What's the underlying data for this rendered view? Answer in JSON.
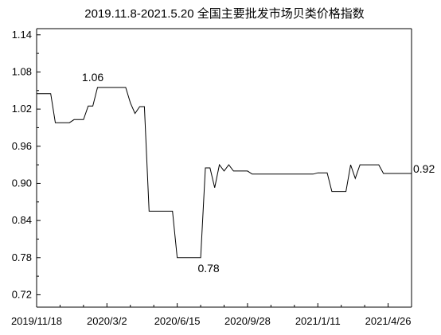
{
  "chart_data": {
    "type": "line",
    "title": "2019.11.8-2021.5.20 全国主要批发市场贝类价格指数",
    "xlabel": "",
    "ylabel": "",
    "ylim": [
      0.7,
      1.15
    ],
    "yticks": [
      "0.72",
      "0.78",
      "0.84",
      "0.90",
      "0.96",
      "1.02",
      "1.08",
      "1.14"
    ],
    "xticks": [
      "2019/11/18",
      "2020/3/2",
      "2020/6/15",
      "2020/9/28",
      "2021/1/11",
      "2021/4/26"
    ],
    "grid": false,
    "series": [
      {
        "x": [
          0,
          3,
          4,
          7,
          8,
          10,
          11,
          12,
          13,
          14,
          15,
          16,
          17,
          18,
          19,
          20,
          21,
          22,
          23,
          24,
          26,
          27,
          28,
          29,
          30,
          31,
          32,
          33,
          34,
          35,
          36,
          37,
          38,
          39,
          40,
          41,
          42,
          43,
          44,
          45,
          46,
          47,
          48,
          49,
          50,
          51,
          52,
          53,
          54,
          55,
          56,
          57,
          58,
          59,
          60,
          61,
          62,
          63,
          64,
          65,
          66,
          67,
          68,
          69,
          70,
          71,
          72,
          73,
          74,
          75,
          76,
          77,
          78,
          79,
          80
        ],
        "y": [
          1.045,
          1.045,
          0.998,
          0.998,
          1.003,
          1.003,
          1.025,
          1.025,
          1.055,
          1.055,
          1.055,
          1.055,
          1.055,
          1.055,
          1.055,
          1.03,
          1.013,
          1.024,
          1.024,
          0.855,
          0.855,
          0.855,
          0.855,
          0.855,
          0.78,
          0.78,
          0.78,
          0.78,
          0.78,
          0.78,
          0.925,
          0.925,
          0.893,
          0.93,
          0.92,
          0.93,
          0.92,
          0.92,
          0.92,
          0.92,
          0.915,
          0.915,
          0.915,
          0.915,
          0.915,
          0.915,
          0.915,
          0.915,
          0.915,
          0.915,
          0.915,
          0.915,
          0.915,
          0.915,
          0.917,
          0.917,
          0.917,
          0.887,
          0.887,
          0.887,
          0.887,
          0.93,
          0.908,
          0.93,
          0.93,
          0.93,
          0.93,
          0.93,
          0.916,
          0.916,
          0.916,
          0.916,
          0.916,
          0.916,
          0.916
        ]
      }
    ],
    "annotations": [
      {
        "text": "1.06",
        "x": 13,
        "y": 1.055
      },
      {
        "text": "0.78",
        "x": 35,
        "y": 0.78
      },
      {
        "text": "0.92",
        "x": 80,
        "y": 0.924
      }
    ]
  }
}
